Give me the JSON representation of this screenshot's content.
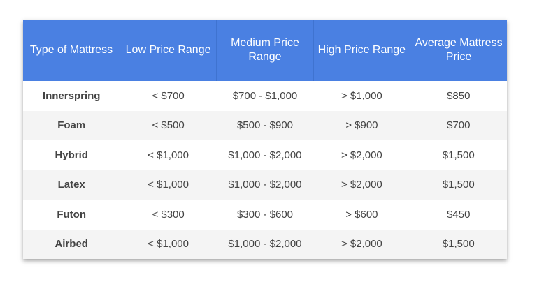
{
  "table": {
    "headers": [
      "Type of Mattress",
      "Low Price Range",
      "Medium Price Range",
      "High Price Range",
      "Average Mattress Price"
    ],
    "rows": [
      [
        "Innerspring",
        "< $700",
        "$700 - $1,000",
        "> $1,000",
        "$850"
      ],
      [
        "Foam",
        "< $500",
        "$500 - $900",
        "> $900",
        "$700"
      ],
      [
        "Hybrid",
        "< $1,000",
        "$1,000 - $2,000",
        "> $2,000",
        "$1,500"
      ],
      [
        "Latex",
        "< $1,000",
        "$1,000 - $2,000",
        "> $2,000",
        "$1,500"
      ],
      [
        "Futon",
        "< $300",
        "$300 - $600",
        "> $600",
        "$450"
      ],
      [
        "Airbed",
        "< $1,000",
        "$1,000 - $2,000",
        "> $2,000",
        "$1,500"
      ]
    ]
  },
  "colors": {
    "header_bg": "#4a80e2",
    "header_text": "#ffffff",
    "alt_row": "#f4f4f4",
    "body_text": "#444444"
  }
}
